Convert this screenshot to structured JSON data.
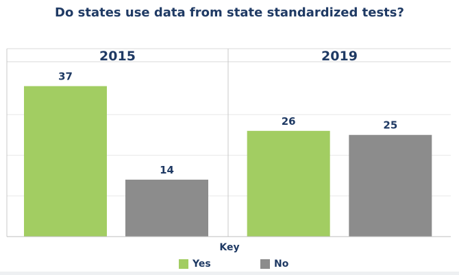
{
  "chart_data": {
    "type": "bar",
    "title": "Do states use data from state standardized tests?",
    "panels": [
      {
        "label": "2015",
        "categories": [
          "Yes",
          "No"
        ],
        "values": [
          37,
          14
        ]
      },
      {
        "label": "2019",
        "categories": [
          "Yes",
          "No"
        ],
        "values": [
          26,
          25
        ]
      }
    ],
    "ylim": [
      0,
      43
    ],
    "grid": true,
    "legend": {
      "title": "Key",
      "placement": "bottom-center",
      "items": [
        {
          "label": "Yes",
          "color": "#a2cd62"
        },
        {
          "label": "No",
          "color": "#8c8c8c"
        }
      ]
    }
  }
}
